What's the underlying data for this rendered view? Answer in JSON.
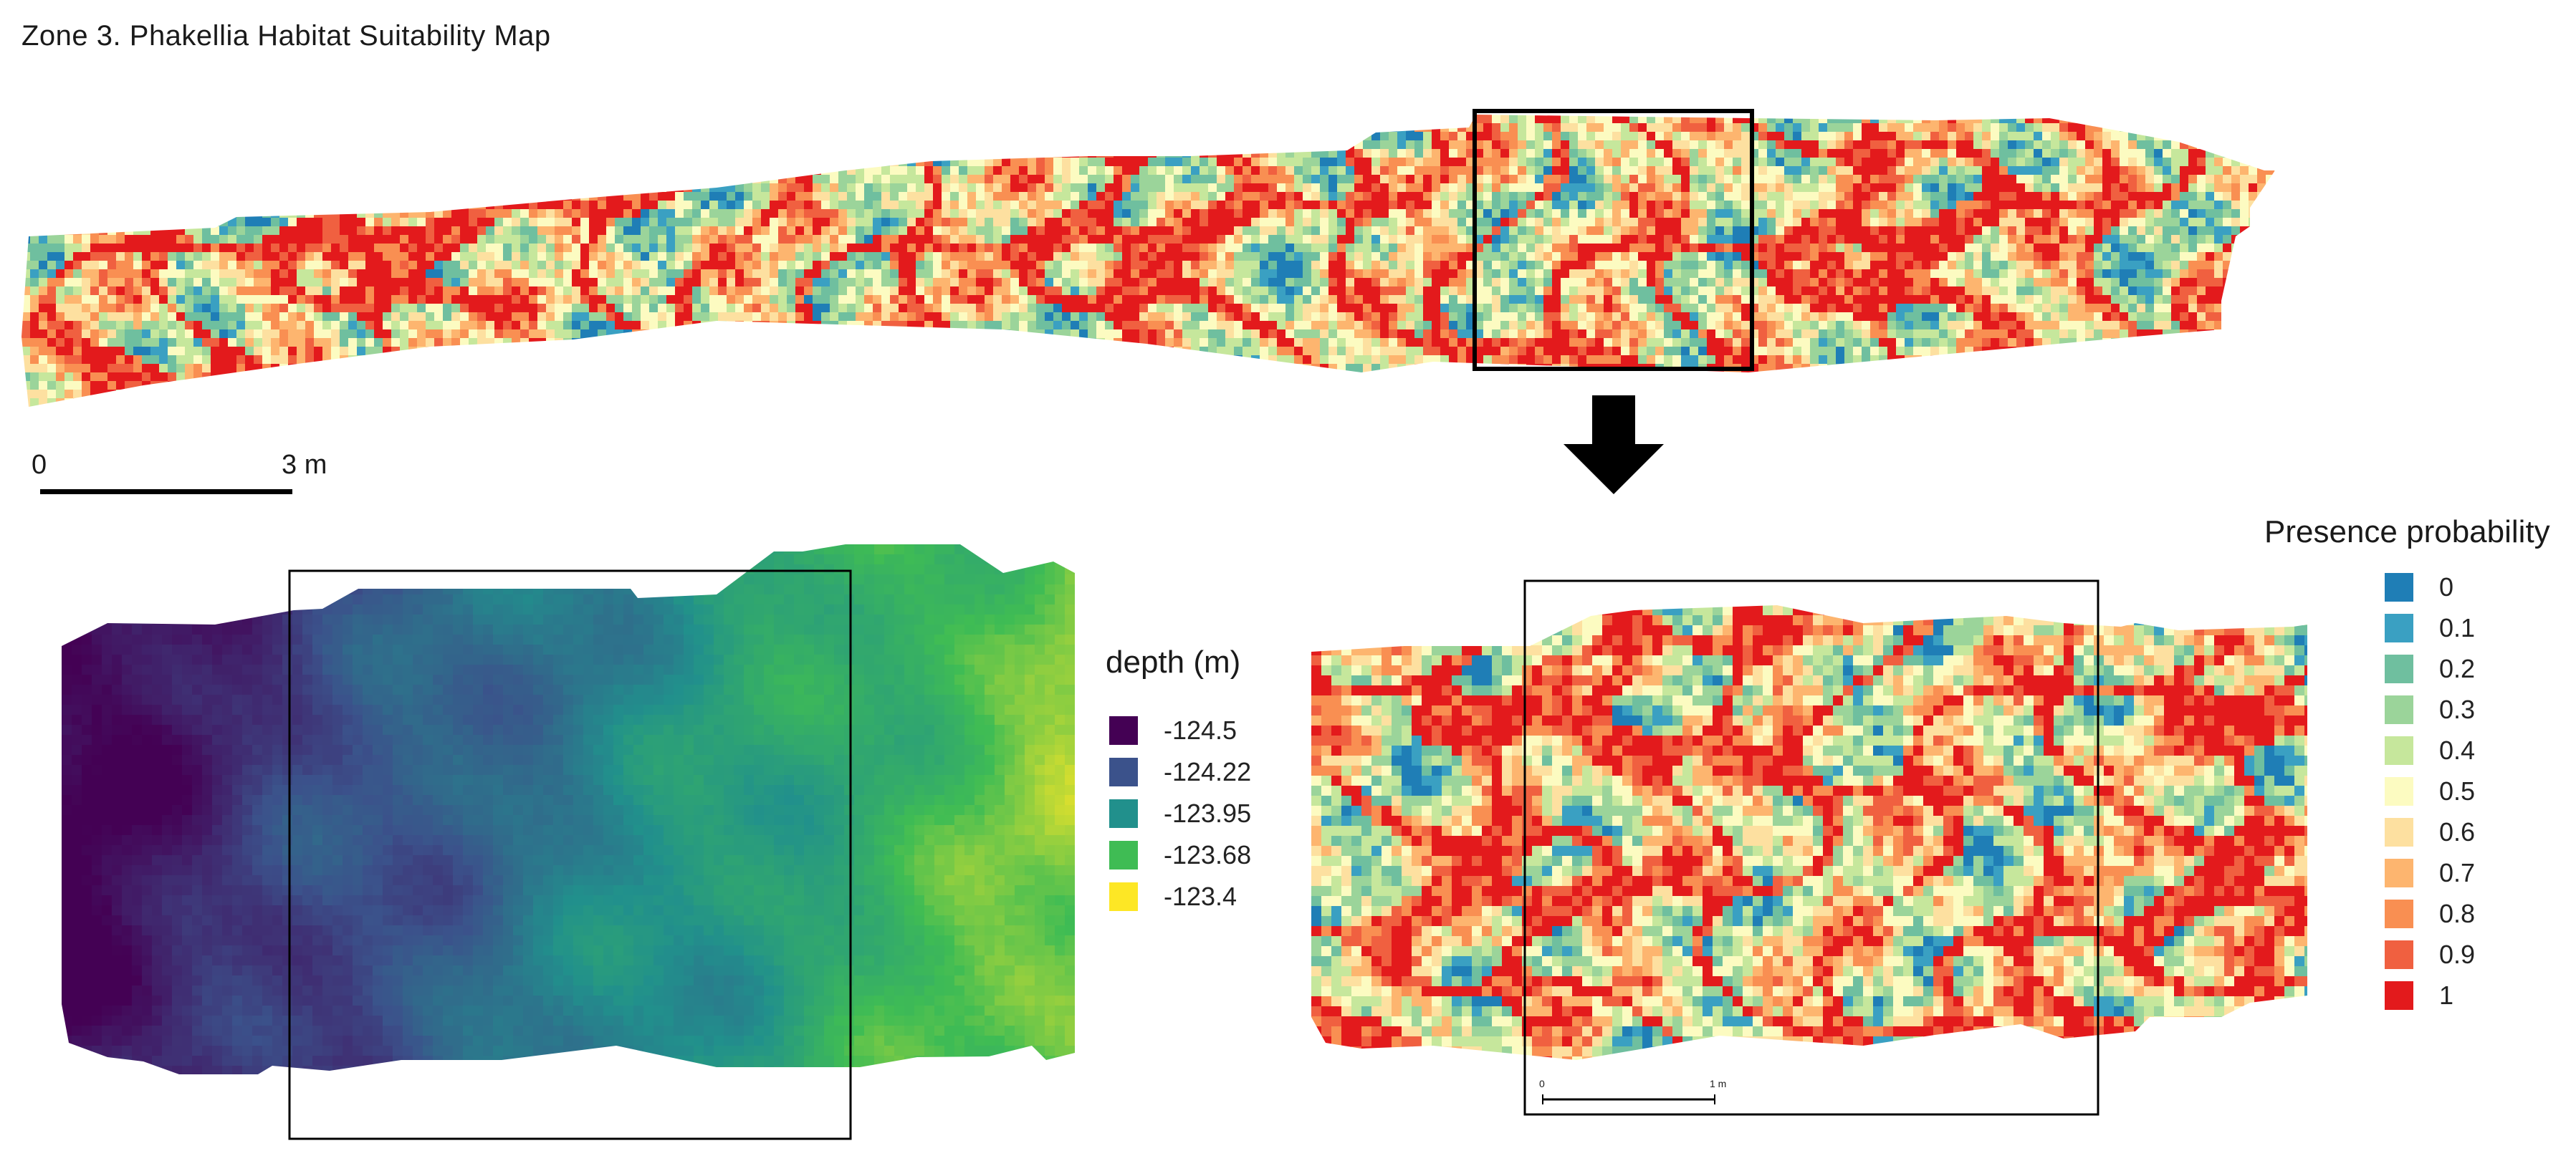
{
  "title": "Zone 3. Phakellia Habitat Suitability Map",
  "scale_bar_top": {
    "start_label": "0",
    "end_label": "3 m"
  },
  "scale_bar_inset": {
    "start_label": "0",
    "end_label": "1 m"
  },
  "depth_legend": {
    "title": "depth (m)",
    "items": [
      {
        "label": "-124.5",
        "color": "#440154"
      },
      {
        "label": "-124.22",
        "color": "#3b528b"
      },
      {
        "label": "-123.95",
        "color": "#21908c"
      },
      {
        "label": "-123.68",
        "color": "#3fbc54"
      },
      {
        "label": "-123.4",
        "color": "#fde725"
      }
    ]
  },
  "probability_legend": {
    "title": "Presence probability",
    "items": [
      {
        "label": "0",
        "color": "#1f7eb6"
      },
      {
        "label": "0.1",
        "color": "#3aa0c2"
      },
      {
        "label": "0.2",
        "color": "#6fbf9f"
      },
      {
        "label": "0.3",
        "color": "#9bd49a"
      },
      {
        "label": "0.4",
        "color": "#c6e79c"
      },
      {
        "label": "0.5",
        "color": "#fcfbc1"
      },
      {
        "label": "0.6",
        "color": "#fde0a0"
      },
      {
        "label": "0.7",
        "color": "#fdb56f"
      },
      {
        "label": "0.8",
        "color": "#f98f52"
      },
      {
        "label": "0.9",
        "color": "#f06040"
      },
      {
        "label": "1",
        "color": "#e31a1c"
      }
    ]
  },
  "colors": {
    "arrow": "#000000",
    "frame": "#000000"
  }
}
